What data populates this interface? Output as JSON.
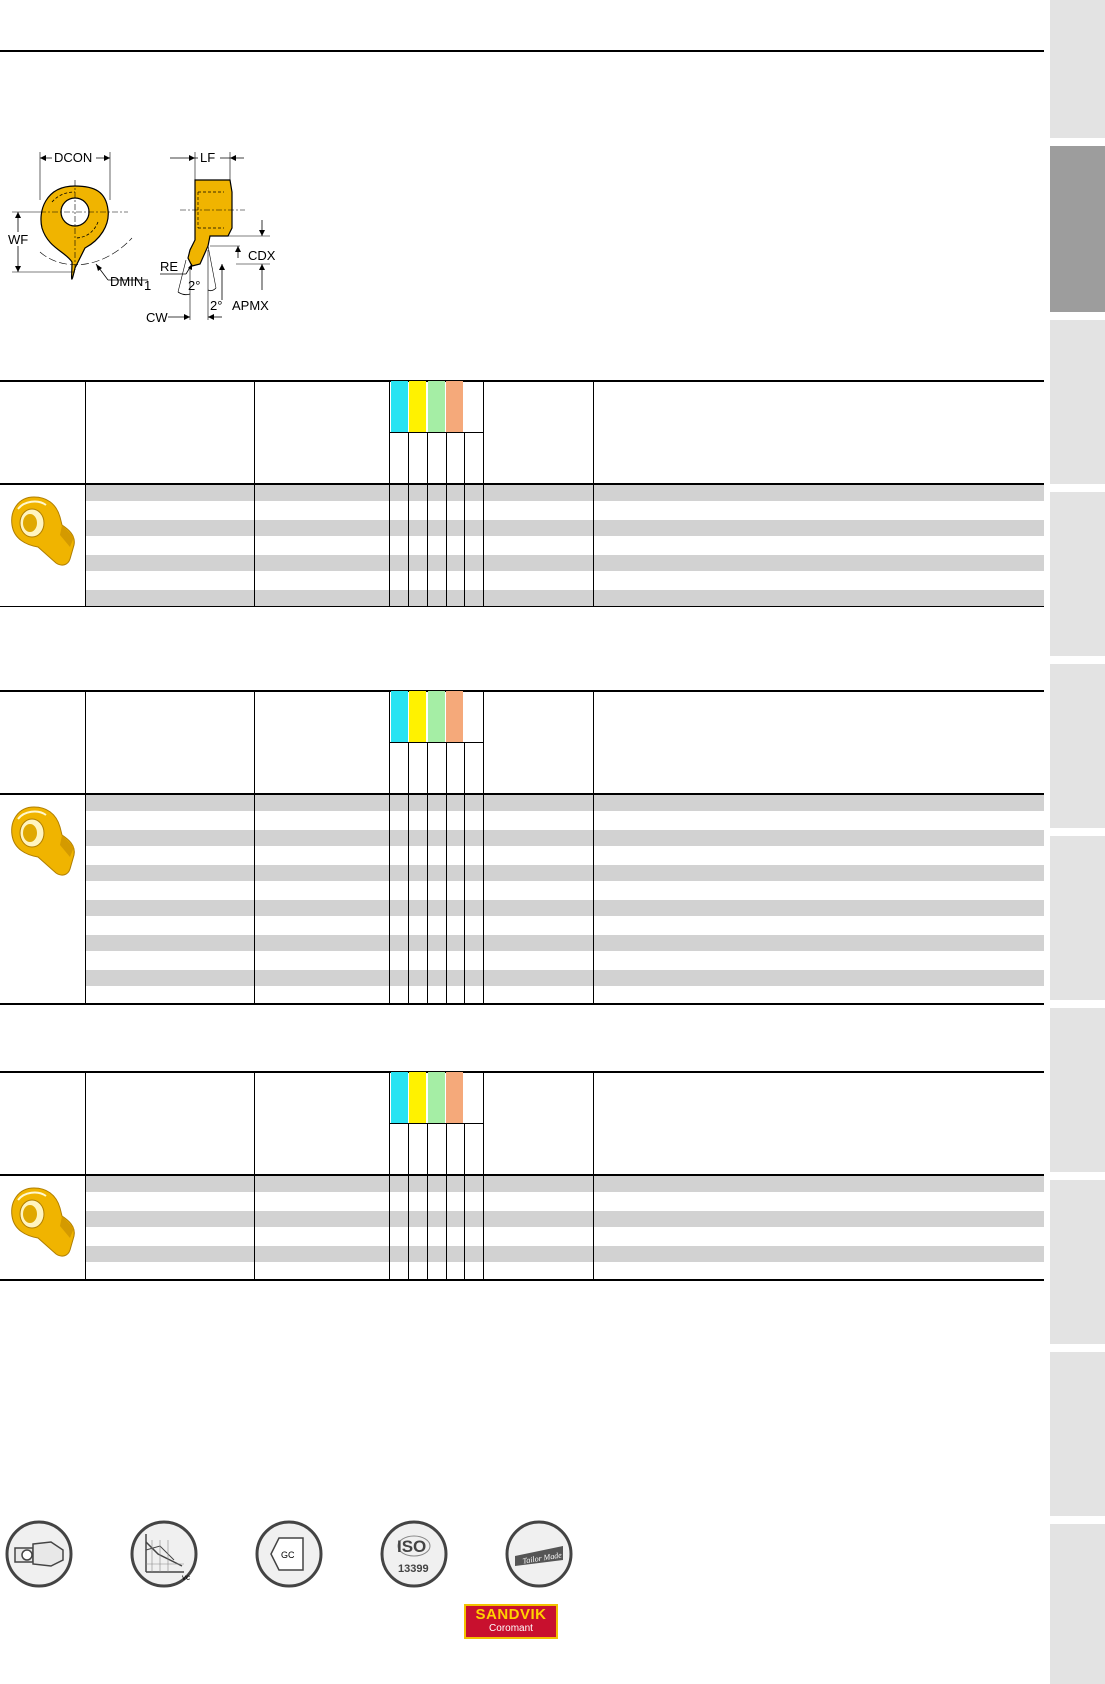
{
  "diagram": {
    "labels": {
      "dcon": "DCON",
      "lf": "LF",
      "wf": "WF",
      "dmin": "DMIN",
      "dmin_sub": "1",
      "re": "RE",
      "cdx": "CDX",
      "angle1": "2°",
      "angle2": "2°",
      "apmx": "APMX",
      "cw": "CW"
    }
  },
  "grade_colors": [
    "#28e3f2",
    "#fff200",
    "#a5eea5",
    "#f5a97a"
  ],
  "tables": [
    {
      "rows": 7,
      "stripes": 4
    },
    {
      "rows": 12,
      "stripes": 6
    },
    {
      "rows": 6,
      "stripes": 3
    }
  ],
  "footer": {
    "icons": [
      "tool-holder-icon",
      "cutting-data-icon",
      "grade-icon",
      "iso-13399-icon",
      "tailor-made-icon"
    ],
    "grade_icon_text": "GC",
    "iso_text": "ISO",
    "iso_number": "13399",
    "tailor_text": "Tailor Made",
    "vc_text": "vc"
  },
  "brand": {
    "name": "SANDVIK",
    "sub": "Coromant",
    "color": "#c8102e",
    "accent": "#ffd200"
  },
  "accent_colors": {
    "insert": "#f0b400",
    "tab_active": "#9d9d9d",
    "tab_inactive": "#e3e3e3",
    "stripe": "#d2d2d2"
  }
}
